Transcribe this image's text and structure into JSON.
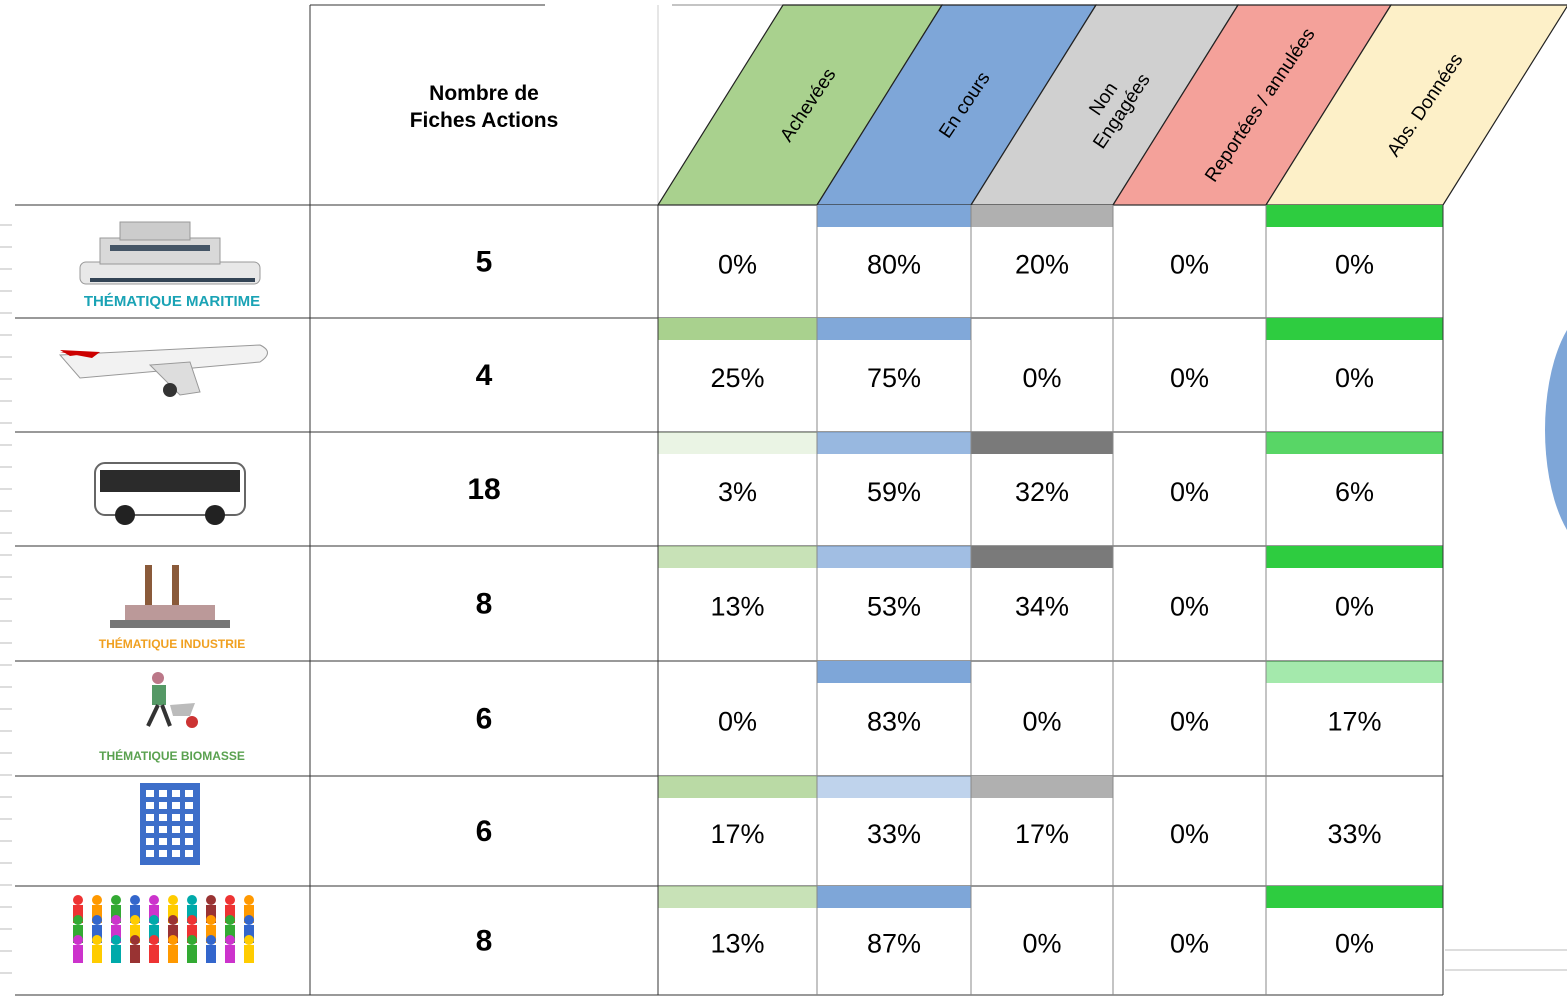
{
  "header": {
    "count_title": [
      "Nombre de",
      "Fiches Actions"
    ],
    "columns": [
      [
        "Achevées"
      ],
      [
        "En cours"
      ],
      [
        "Non",
        "Engagées"
      ],
      [
        "Reportées / annulées"
      ],
      [
        "Abs. Données"
      ]
    ]
  },
  "rows": [
    {
      "caption": "THÉMATIQUE MARITIME",
      "count": 5,
      "cells": [
        "0%",
        "80%",
        "20%",
        "0%",
        "0%"
      ]
    },
    {
      "count": 4,
      "cells": [
        "25%",
        "75%",
        "0%",
        "0%",
        "0%"
      ]
    },
    {
      "count": 18,
      "cells": [
        "3%",
        "59%",
        "32%",
        "0%",
        "6%"
      ]
    },
    {
      "caption": "THÉMATIQUE INDUSTRIE",
      "count": 8,
      "cells": [
        "13%",
        "53%",
        "34%",
        "0%",
        "0%"
      ]
    },
    {
      "caption": "THÉMATIQUE BIOMASSE",
      "count": 6,
      "cells": [
        "0%",
        "83%",
        "0%",
        "0%",
        "17%"
      ]
    },
    {
      "count": 6,
      "cells": [
        "17%",
        "33%",
        "17%",
        "0%",
        "33%"
      ]
    },
    {
      "count": 8,
      "cells": [
        "13%",
        "87%",
        "0%",
        "0%",
        "0%"
      ]
    }
  ]
}
